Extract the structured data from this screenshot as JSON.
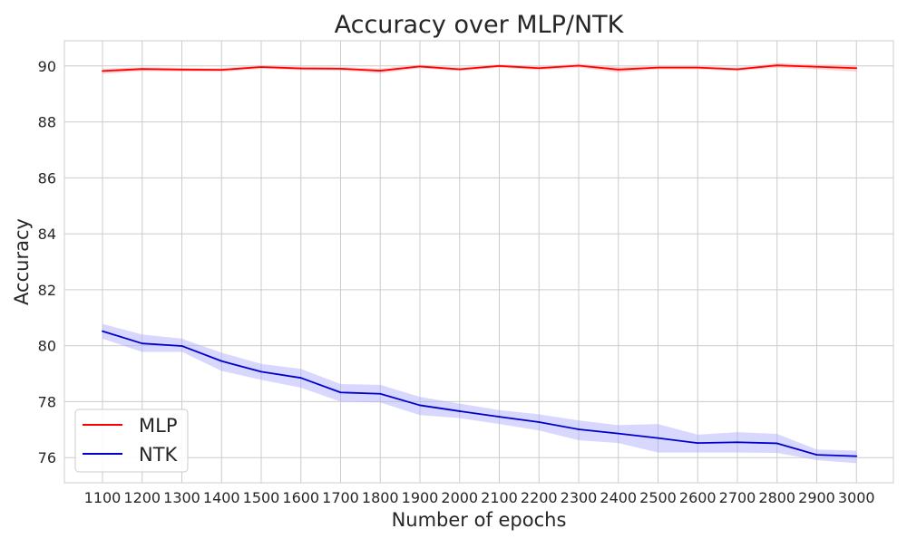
{
  "chart_data": {
    "type": "line",
    "title": "Accuracy over MLP/NTK",
    "xlabel": "Number of epochs",
    "ylabel": "Accuracy",
    "x": [
      1100,
      1200,
      1300,
      1400,
      1500,
      1600,
      1700,
      1800,
      1900,
      2000,
      2100,
      2200,
      2300,
      2400,
      2500,
      2600,
      2700,
      2800,
      2900,
      3000
    ],
    "xticks": [
      "1100",
      "1200",
      "1300",
      "1400",
      "1500",
      "1600",
      "1700",
      "1800",
      "1900",
      "2000",
      "2100",
      "2200",
      "2300",
      "2400",
      "2500",
      "2600",
      "2700",
      "2800",
      "2900",
      "3000"
    ],
    "yticks": [
      "76",
      "78",
      "80",
      "82",
      "84",
      "86",
      "88",
      "90"
    ],
    "ylim": [
      75.1,
      90.9
    ],
    "grid": true,
    "legend_position": "lower-left",
    "series": [
      {
        "name": "MLP",
        "color": "#ff0000",
        "band_color": "#ff9a9a",
        "values": [
          89.82,
          89.89,
          89.87,
          89.86,
          89.96,
          89.91,
          89.9,
          89.83,
          89.98,
          89.88,
          90.0,
          89.92,
          90.01,
          89.87,
          89.94,
          89.94,
          89.88,
          90.02,
          89.97,
          89.92
        ],
        "lower": [
          89.72,
          89.82,
          89.8,
          89.79,
          89.9,
          89.85,
          89.84,
          89.74,
          89.92,
          89.82,
          89.94,
          89.85,
          89.94,
          89.77,
          89.88,
          89.88,
          89.82,
          89.94,
          89.88,
          89.8
        ],
        "upper": [
          89.9,
          89.95,
          89.93,
          89.92,
          90.02,
          89.97,
          89.96,
          89.91,
          90.04,
          89.94,
          90.06,
          89.98,
          90.08,
          89.96,
          90.0,
          90.0,
          89.94,
          90.1,
          90.05,
          90.03
        ]
      },
      {
        "name": "NTK",
        "color": "#0000cc",
        "band_color": "#a8a8ff",
        "values": [
          80.52,
          80.08,
          79.99,
          79.45,
          79.07,
          78.85,
          78.33,
          78.28,
          77.87,
          77.66,
          77.46,
          77.27,
          77.01,
          76.86,
          76.7,
          76.52,
          76.55,
          76.51,
          76.1,
          76.05
        ],
        "lower": [
          80.25,
          79.78,
          79.78,
          79.1,
          78.78,
          78.5,
          78.0,
          77.97,
          77.52,
          77.41,
          77.2,
          76.97,
          76.62,
          76.52,
          76.18,
          76.18,
          76.18,
          76.17,
          75.91,
          75.8
        ],
        "upper": [
          80.78,
          80.4,
          80.25,
          79.75,
          79.35,
          79.17,
          78.63,
          78.6,
          78.17,
          77.93,
          77.7,
          77.55,
          77.33,
          77.16,
          77.2,
          76.82,
          76.91,
          76.85,
          76.29,
          76.25
        ]
      }
    ]
  }
}
